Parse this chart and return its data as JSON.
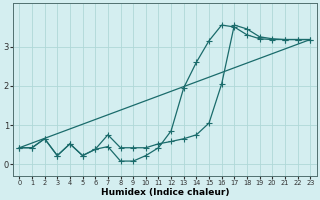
{
  "xlabel": "Humidex (Indice chaleur)",
  "ylabel": "",
  "background_color": "#d4eef0",
  "grid_color": "#afd8d8",
  "line_color": "#1a6b6b",
  "xlim": [
    -0.5,
    23.5
  ],
  "ylim": [
    -0.3,
    4.1
  ],
  "yticks": [
    0,
    1,
    2,
    3
  ],
  "xticks": [
    0,
    1,
    2,
    3,
    4,
    5,
    6,
    7,
    8,
    9,
    10,
    11,
    12,
    13,
    14,
    15,
    16,
    17,
    18,
    19,
    20,
    21,
    22,
    23
  ],
  "line1_x": [
    0,
    1,
    2,
    3,
    4,
    5,
    6,
    7,
    8,
    9,
    10,
    11,
    12,
    13,
    14,
    15,
    16,
    17,
    18,
    19,
    20,
    21,
    22,
    23
  ],
  "line1_y": [
    0.42,
    0.42,
    0.65,
    0.22,
    0.52,
    0.22,
    0.38,
    0.75,
    0.42,
    0.42,
    0.42,
    0.52,
    0.58,
    0.65,
    0.75,
    1.05,
    2.05,
    3.55,
    3.45,
    3.25,
    3.2,
    3.18,
    3.18,
    3.18
  ],
  "line2_x": [
    0,
    23
  ],
  "line2_y": [
    0.42,
    3.18
  ],
  "line3_x": [
    0,
    1,
    2,
    3,
    4,
    5,
    6,
    7,
    8,
    9,
    10,
    11,
    12,
    13,
    14,
    15,
    16,
    17,
    18,
    19,
    20,
    21,
    22,
    23
  ],
  "line3_y": [
    0.42,
    0.42,
    0.65,
    0.22,
    0.52,
    0.22,
    0.38,
    0.45,
    0.08,
    0.08,
    0.22,
    0.42,
    0.85,
    1.95,
    2.6,
    3.15,
    3.55,
    3.5,
    3.3,
    3.2,
    3.18,
    3.18,
    3.18,
    3.18
  ]
}
